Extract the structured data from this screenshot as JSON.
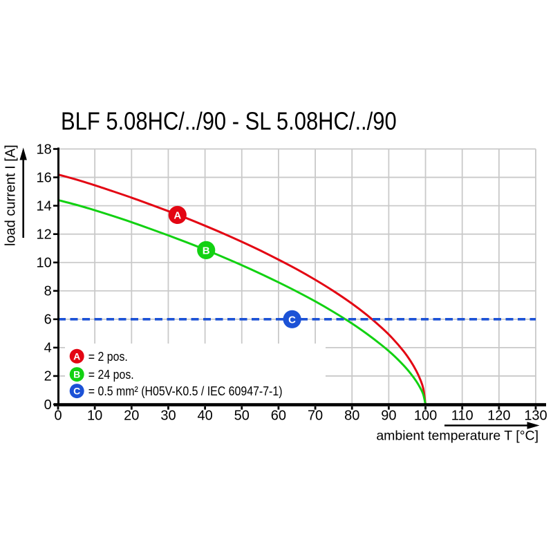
{
  "chart_data": {
    "type": "line",
    "title": "BLF 5.08HC/../90 - SL 5.08HC/../90",
    "xlabel": "ambient temperature T [°C]",
    "ylabel": "load current I [A]",
    "xlim": [
      0,
      130
    ],
    "ylim": [
      0,
      18
    ],
    "xticks": [
      0,
      10,
      20,
      30,
      40,
      50,
      60,
      70,
      80,
      90,
      100,
      110,
      120,
      130
    ],
    "yticks": [
      0,
      2,
      4,
      6,
      8,
      10,
      12,
      14,
      16,
      18
    ],
    "grid": true,
    "grid_color": "#c9c9c9",
    "legend_position": "lower-left-inside",
    "series": [
      {
        "name": "A",
        "label": "= 2 pos.",
        "color": "#e30613",
        "x": [
          0,
          5,
          10,
          15,
          20,
          25,
          30,
          35,
          40,
          45,
          50,
          55,
          60,
          65,
          70,
          75,
          80,
          84,
          88,
          91,
          94,
          96,
          97.5,
          98.6,
          99.4,
          100
        ],
        "y": [
          16.2,
          15.84,
          15.44,
          15.01,
          14.57,
          14.1,
          13.62,
          13.12,
          12.59,
          12.04,
          11.46,
          10.85,
          10.2,
          9.52,
          8.78,
          7.98,
          7.1,
          6.31,
          5.42,
          4.66,
          3.76,
          3.03,
          2.36,
          1.74,
          1.11,
          0.0
        ],
        "marker": {
          "letter": "A",
          "x": 32.5,
          "y": 13.35
        }
      },
      {
        "name": "B",
        "label": "= 24 pos.",
        "color": "#12d112",
        "x": [
          0,
          5,
          10,
          15,
          20,
          25,
          30,
          35,
          40,
          45,
          50,
          55,
          60,
          65,
          70,
          75,
          80,
          84,
          88,
          91,
          94,
          96,
          97.5,
          98.6,
          99.4,
          100
        ],
        "y": [
          14.4,
          14.06,
          13.68,
          13.27,
          12.84,
          12.38,
          11.91,
          11.42,
          10.91,
          10.37,
          9.81,
          9.22,
          8.6,
          7.95,
          7.26,
          6.51,
          5.7,
          4.98,
          4.19,
          3.53,
          2.76,
          2.16,
          1.63,
          1.15,
          0.69,
          0.0
        ],
        "marker": {
          "letter": "B",
          "x": 40.3,
          "y": 10.87
        }
      },
      {
        "name": "C",
        "label": "= 0.5 mm² (H05V-K0.5 / IEC 60947-7-1)",
        "color": "#1c52d6",
        "style": "dashed-hline",
        "value": 6,
        "marker": {
          "letter": "C",
          "x": 63.7,
          "y": 6
        }
      }
    ]
  }
}
